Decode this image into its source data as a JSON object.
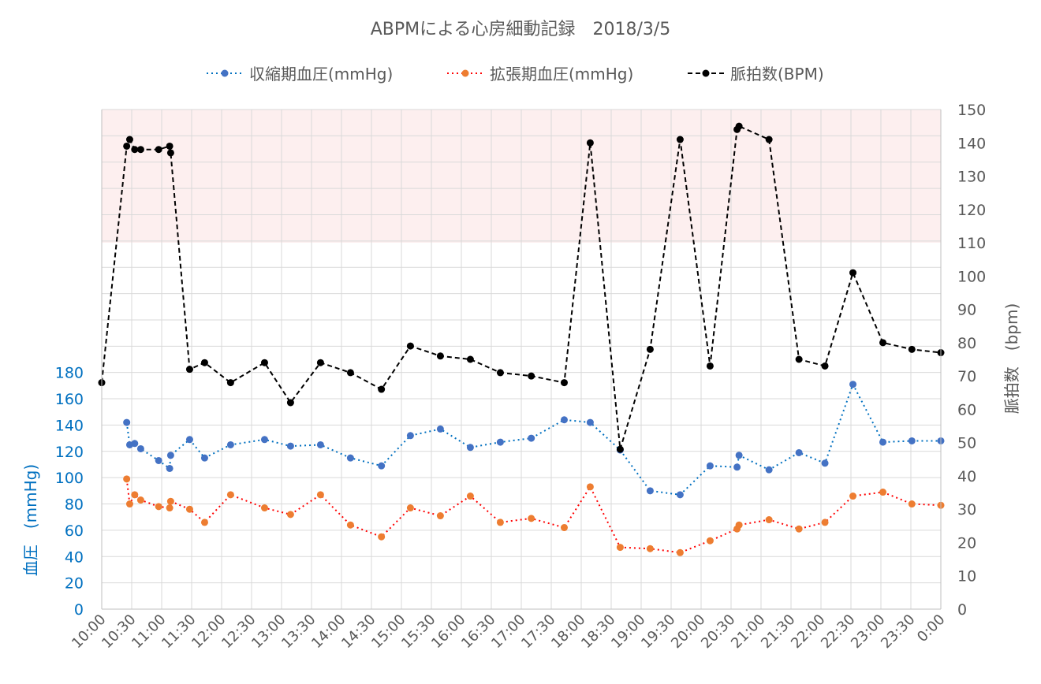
{
  "chart_data": {
    "type": "line",
    "title": "ABPMによる心房細動記録　2018/3/5",
    "y_left_label": "血圧　(mmHg)",
    "y_right_label": "脈拍数　(bpm)",
    "y_left_ticks": [
      0,
      20,
      40,
      60,
      80,
      100,
      120,
      140,
      160,
      180
    ],
    "y_left_range": [
      0,
      380
    ],
    "y_right_ticks": [
      0,
      10,
      20,
      30,
      40,
      50,
      60,
      70,
      80,
      90,
      100,
      110,
      120,
      130,
      140,
      150
    ],
    "y_right_range": [
      0,
      150
    ],
    "x_range_minutes": [
      600,
      1440
    ],
    "x_ticks": [
      "10:00",
      "10:30",
      "11:00",
      "11:30",
      "12:00",
      "12:30",
      "13:00",
      "13:30",
      "14:00",
      "14:30",
      "15:00",
      "15:30",
      "16:00",
      "16:30",
      "17:00",
      "17:30",
      "18:00",
      "18:30",
      "19:00",
      "19:30",
      "20:00",
      "20:30",
      "21:00",
      "21:30",
      "22:00",
      "22:30",
      "23:00",
      "23:30",
      "0:00"
    ],
    "highlight_band_bpm": [
      110,
      150
    ],
    "colors": {
      "systolic": "#4472C4",
      "systolic_line": "#0070C0",
      "diastolic": "#ED7D31",
      "diastolic_line": "#FF0000",
      "pulse": "#000000",
      "band": "#FDEFEF",
      "left_axis": "#0070C0",
      "right_axis": "#595959"
    },
    "series": [
      {
        "name": "収縮期血圧(mmHg)",
        "axis": "left",
        "key": "systolic",
        "points": [
          [
            "10:25",
            142
          ],
          [
            "10:28",
            125
          ],
          [
            "10:33",
            126
          ],
          [
            "10:39",
            122
          ],
          [
            "10:57",
            113
          ],
          [
            "11:08",
            107
          ],
          [
            "11:09",
            117
          ],
          [
            "11:28",
            129
          ],
          [
            "11:43",
            115
          ],
          [
            "12:09",
            125
          ],
          [
            "12:43",
            129
          ],
          [
            "13:09",
            124
          ],
          [
            "13:39",
            125
          ],
          [
            "14:09",
            115
          ],
          [
            "14:40",
            109
          ],
          [
            "15:09",
            132
          ],
          [
            "15:39",
            137
          ],
          [
            "16:09",
            123
          ],
          [
            "16:39",
            127
          ],
          [
            "17:10",
            130
          ],
          [
            "17:43",
            144
          ],
          [
            "18:09",
            142
          ],
          [
            "18:39",
            121
          ],
          [
            "19:09",
            90
          ],
          [
            "19:39",
            87
          ],
          [
            "20:09",
            109
          ],
          [
            "20:36",
            108
          ],
          [
            "20:38",
            117
          ],
          [
            "21:08",
            106
          ],
          [
            "21:38",
            119
          ],
          [
            "22:04",
            111
          ],
          [
            "22:32",
            171
          ],
          [
            "23:02",
            127
          ],
          [
            "23:31",
            128
          ],
          [
            "24:00",
            128
          ]
        ]
      },
      {
        "name": "拡張期血圧(mmHg)",
        "axis": "left",
        "key": "diastolic",
        "points": [
          [
            "10:25",
            99
          ],
          [
            "10:28",
            80
          ],
          [
            "10:33",
            87
          ],
          [
            "10:39",
            83
          ],
          [
            "10:57",
            78
          ],
          [
            "11:08",
            77
          ],
          [
            "11:09",
            82
          ],
          [
            "11:28",
            76
          ],
          [
            "11:43",
            66
          ],
          [
            "12:09",
            87
          ],
          [
            "12:43",
            77
          ],
          [
            "13:09",
            72
          ],
          [
            "13:39",
            87
          ],
          [
            "14:09",
            64
          ],
          [
            "14:40",
            55
          ],
          [
            "15:09",
            77
          ],
          [
            "15:39",
            71
          ],
          [
            "16:09",
            86
          ],
          [
            "16:39",
            66
          ],
          [
            "17:10",
            69
          ],
          [
            "17:43",
            62
          ],
          [
            "18:09",
            93
          ],
          [
            "18:39",
            47
          ],
          [
            "19:09",
            46
          ],
          [
            "19:39",
            43
          ],
          [
            "20:09",
            52
          ],
          [
            "20:36",
            61
          ],
          [
            "20:38",
            64
          ],
          [
            "21:08",
            68
          ],
          [
            "21:38",
            61
          ],
          [
            "22:04",
            66
          ],
          [
            "22:32",
            86
          ],
          [
            "23:02",
            89
          ],
          [
            "23:31",
            80
          ],
          [
            "24:00",
            79
          ]
        ]
      },
      {
        "name": "脈拍数(BPM)",
        "axis": "right",
        "key": "pulse",
        "points": [
          [
            "10:00",
            68
          ],
          [
            "10:25",
            139
          ],
          [
            "10:28",
            141
          ],
          [
            "10:33",
            138
          ],
          [
            "10:39",
            138
          ],
          [
            "10:57",
            138
          ],
          [
            "11:08",
            139
          ],
          [
            "11:09",
            137
          ],
          [
            "11:28",
            72
          ],
          [
            "11:43",
            74
          ],
          [
            "12:09",
            68
          ],
          [
            "12:43",
            74
          ],
          [
            "13:09",
            62
          ],
          [
            "13:39",
            74
          ],
          [
            "14:09",
            71
          ],
          [
            "14:40",
            66
          ],
          [
            "15:09",
            79
          ],
          [
            "15:39",
            76
          ],
          [
            "16:09",
            75
          ],
          [
            "16:39",
            71
          ],
          [
            "17:10",
            70
          ],
          [
            "17:43",
            68
          ],
          [
            "18:09",
            140
          ],
          [
            "18:39",
            48
          ],
          [
            "19:09",
            78
          ],
          [
            "19:39",
            141
          ],
          [
            "20:09",
            73
          ],
          [
            "20:36",
            144
          ],
          [
            "20:38",
            145
          ],
          [
            "21:08",
            141
          ],
          [
            "21:38",
            75
          ],
          [
            "22:04",
            73
          ],
          [
            "22:32",
            101
          ],
          [
            "23:02",
            80
          ],
          [
            "23:31",
            78
          ],
          [
            "24:00",
            77
          ]
        ]
      }
    ]
  }
}
